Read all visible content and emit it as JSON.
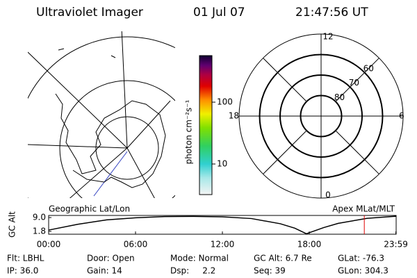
{
  "header": {
    "title": "Ultraviolet Imager",
    "date": "01 Jul 07",
    "time": "21:47:56 UT"
  },
  "colorbar": {
    "label": "photon cm⁻²s⁻¹",
    "scale": "log",
    "lim": [
      3.2,
      566
    ],
    "ticks": [
      10,
      100
    ]
  },
  "polar": {
    "mlt_ticks": [
      12,
      18,
      6,
      0
    ],
    "lat_lim": [
      90,
      50
    ],
    "lat_ticks": [
      80,
      70,
      60
    ]
  },
  "timeline": {
    "title_left": "Geographic Lat/Lon",
    "title_right": "Apex MLat/MLT",
    "ylabel": "GC Alt",
    "xlim": [
      0,
      24
    ],
    "ylim": [
      0.36,
      10.1
    ],
    "yticks": [
      {
        "value": 9.0,
        "label": "9.0"
      },
      {
        "value": 1.8,
        "label": "1.8"
      }
    ],
    "xticks": [
      {
        "value": 0,
        "label": "00:00"
      },
      {
        "value": 6,
        "label": "06:00"
      },
      {
        "value": 12,
        "label": "12:00"
      },
      {
        "value": 18,
        "label": "18:00"
      },
      {
        "value": 23.98,
        "label": "23:59"
      }
    ],
    "x": [
      0,
      2,
      4,
      6,
      8,
      10,
      12,
      14,
      16,
      17,
      17.8,
      19,
      20,
      22,
      24
    ],
    "values": [
      2.5,
      5.5,
      7.8,
      8.9,
      9.5,
      9.6,
      9.4,
      8.5,
      5.8,
      3.5,
      0.6,
      3.8,
      6.0,
      8.6,
      9.7
    ],
    "marker_x": 21.8,
    "marker_color": "#e00000"
  },
  "info": [
    [
      "Flt: LBHL",
      "Door: Open",
      "Mode: Normal",
      "GC Alt: 6.7 Re",
      "GLat: -76.3"
    ],
    [
      "IP: 36.0",
      "Gain: 14",
      "Dsp:     2.2",
      "Seq: 39",
      "GLon: 304.3"
    ]
  ]
}
